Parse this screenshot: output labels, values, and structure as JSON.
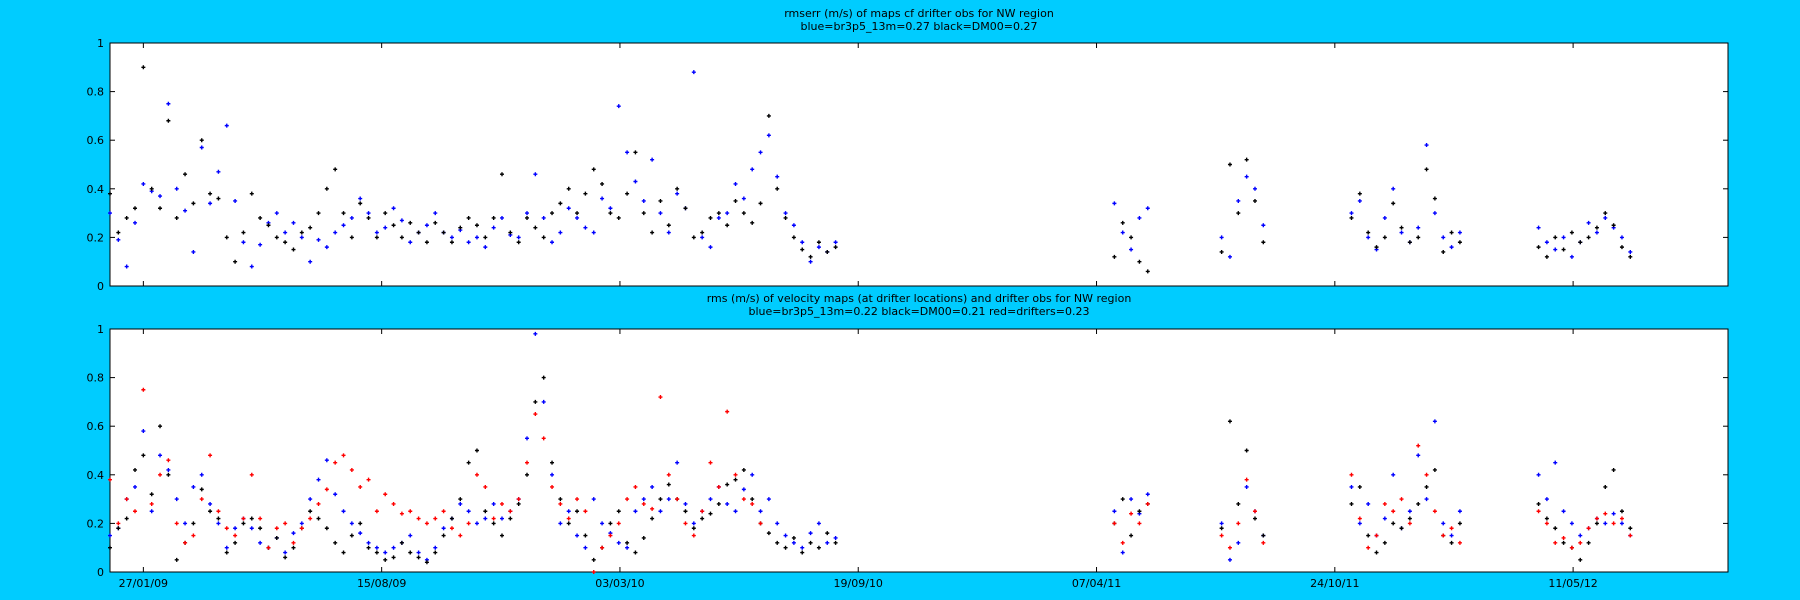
{
  "colors": {
    "background": "#00ccff",
    "plot_bg": "#ffffff",
    "blue": "#0000ff",
    "black": "#000000",
    "red": "#ff0000"
  },
  "chart_data": [
    {
      "type": "scatter",
      "title": "rmserr (m/s) of maps cf drifter obs for NW region",
      "subtitle": "blue=br3p5_13m=0.27 black=DM00=0.27",
      "ylim": [
        0,
        1
      ],
      "yticks": [
        0,
        0.2,
        0.4,
        0.6,
        0.8,
        1
      ],
      "ytick_labels": [
        "0",
        "0.2",
        "0.4",
        "0.6",
        "0.8",
        "1"
      ],
      "xlim": [
        "2008-12-30",
        "2012-09-18"
      ],
      "xticks": [
        "2009-01-27",
        "2009-08-15",
        "2010-03-03",
        "2010-09-19",
        "2011-04-07",
        "2011-10-24",
        "2012-05-11"
      ],
      "xtick_labels": [],
      "grid": false,
      "series": [
        {
          "color": "blue",
          "segments": [
            {
              "start": "2008-12-30",
              "step_days": 7,
              "values": [
                0.3,
                0.19,
                0.08,
                0.26,
                0.42,
                0.39,
                0.37,
                0.75,
                0.4,
                0.31,
                0.14,
                0.57,
                0.34,
                0.47,
                0.66,
                0.35,
                0.18,
                0.08,
                0.17,
                0.26,
                0.3,
                0.22,
                0.26,
                0.2,
                0.1,
                0.19,
                0.16,
                0.22,
                0.25,
                0.28,
                0.36,
                0.3,
                0.22,
                0.24,
                0.32,
                0.27,
                0.18,
                0.22,
                0.25,
                0.3,
                0.22,
                0.2,
                0.23,
                0.18,
                0.2,
                0.16,
                0.24,
                0.28,
                0.21,
                0.2,
                0.3,
                0.46,
                0.28,
                0.18,
                0.22,
                0.32,
                0.28,
                0.24,
                0.22,
                0.36,
                0.32,
                0.74,
                0.55,
                0.43,
                0.35,
                0.52,
                0.3,
                0.22,
                0.38,
                0.32,
                0.88,
                0.2,
                0.16,
                0.28,
                0.3,
                0.42,
                0.36,
                0.48,
                0.55,
                0.62,
                0.45,
                0.3,
                0.25,
                0.18,
                0.1,
                0.16,
                0.14,
                0.18
              ]
            },
            {
              "start": "2011-04-22",
              "step_days": 7,
              "values": [
                0.34,
                0.22,
                0.15,
                0.28,
                0.32
              ]
            },
            {
              "start": "2011-07-21",
              "step_days": 7,
              "values": [
                0.2,
                0.12,
                0.35,
                0.45,
                0.4,
                0.25
              ]
            },
            {
              "start": "2011-11-07",
              "step_days": 7,
              "values": [
                0.3,
                0.35,
                0.2,
                0.15,
                0.28,
                0.4,
                0.22,
                0.18,
                0.24,
                0.58,
                0.3,
                0.2,
                0.16,
                0.22
              ]
            },
            {
              "start": "2012-04-12",
              "step_days": 7,
              "values": [
                0.24,
                0.18,
                0.15,
                0.2,
                0.12,
                0.18,
                0.26,
                0.22,
                0.28,
                0.24,
                0.2,
                0.14
              ]
            }
          ]
        },
        {
          "color": "black",
          "segments": [
            {
              "start": "2008-12-30",
              "step_days": 7,
              "values": [
                0.38,
                0.22,
                0.28,
                0.32,
                0.9,
                0.4,
                0.32,
                0.68,
                0.28,
                0.46,
                0.34,
                0.6,
                0.38,
                0.36,
                0.2,
                0.1,
                0.22,
                0.38,
                0.28,
                0.25,
                0.2,
                0.18,
                0.15,
                0.22,
                0.24,
                0.3,
                0.4,
                0.48,
                0.3,
                0.2,
                0.34,
                0.28,
                0.2,
                0.3,
                0.25,
                0.2,
                0.26,
                0.22,
                0.18,
                0.26,
                0.22,
                0.18,
                0.24,
                0.28,
                0.25,
                0.2,
                0.28,
                0.46,
                0.22,
                0.18,
                0.28,
                0.24,
                0.2,
                0.3,
                0.34,
                0.4,
                0.3,
                0.38,
                0.48,
                0.42,
                0.3,
                0.28,
                0.38,
                0.55,
                0.3,
                0.22,
                0.35,
                0.25,
                0.4,
                0.32,
                0.2,
                0.22,
                0.28,
                0.3,
                0.25,
                0.35,
                0.3,
                0.26,
                0.34,
                0.7,
                0.4,
                0.28,
                0.2,
                0.15,
                0.12,
                0.18,
                0.14,
                0.16
              ]
            },
            {
              "start": "2011-04-22",
              "step_days": 7,
              "values": [
                0.12,
                0.26,
                0.2,
                0.1,
                0.06
              ]
            },
            {
              "start": "2011-07-21",
              "step_days": 7,
              "values": [
                0.14,
                0.5,
                0.3,
                0.52,
                0.35,
                0.18
              ]
            },
            {
              "start": "2011-11-07",
              "step_days": 7,
              "values": [
                0.28,
                0.38,
                0.22,
                0.16,
                0.2,
                0.34,
                0.24,
                0.18,
                0.2,
                0.48,
                0.36,
                0.14,
                0.22,
                0.18
              ]
            },
            {
              "start": "2012-04-12",
              "step_days": 7,
              "values": [
                0.16,
                0.12,
                0.2,
                0.15,
                0.22,
                0.18,
                0.2,
                0.24,
                0.3,
                0.25,
                0.16,
                0.12
              ]
            }
          ]
        }
      ]
    },
    {
      "type": "scatter",
      "title": "rms (m/s) of velocity maps (at drifter locations) and drifter obs for NW region",
      "subtitle": "blue=br3p5_13m=0.22  black=DM00=0.21 red=drifters=0.23",
      "ylim": [
        0,
        1
      ],
      "yticks": [
        0,
        0.2,
        0.4,
        0.6,
        0.8,
        1
      ],
      "ytick_labels": [
        "0",
        "0.2",
        "0.4",
        "0.6",
        "0.8",
        "1"
      ],
      "xlim": [
        "2008-12-30",
        "2012-09-18"
      ],
      "xticks": [
        "2009-01-27",
        "2009-08-15",
        "2010-03-03",
        "2010-09-19",
        "2011-04-07",
        "2011-10-24",
        "2012-05-11"
      ],
      "xtick_labels": [
        "27/01/09",
        "15/08/09",
        "03/03/10",
        "19/09/10",
        "07/04/11",
        "24/10/11",
        "11/05/12"
      ],
      "grid": false,
      "series": [
        {
          "color": "blue",
          "segments": [
            {
              "start": "2008-12-30",
              "step_days": 7,
              "values": [
                0.15,
                0.18,
                0.3,
                0.35,
                0.58,
                0.25,
                0.48,
                0.42,
                0.3,
                0.2,
                0.35,
                0.4,
                0.28,
                0.2,
                0.1,
                0.18,
                0.22,
                0.18,
                0.12,
                0.1,
                0.14,
                0.08,
                0.16,
                0.2,
                0.3,
                0.38,
                0.46,
                0.32,
                0.25,
                0.2,
                0.16,
                0.12,
                0.1,
                0.08,
                0.1,
                0.12,
                0.15,
                0.08,
                0.05,
                0.1,
                0.18,
                0.22,
                0.28,
                0.25,
                0.2,
                0.22,
                0.28,
                0.22,
                0.25,
                0.3,
                0.55,
                0.98,
                0.7,
                0.4,
                0.2,
                0.25,
                0.15,
                0.1,
                0.3,
                0.2,
                0.16,
                0.12,
                0.1,
                0.25,
                0.3,
                0.35,
                0.25,
                0.3,
                0.45,
                0.28,
                0.2,
                0.25,
                0.3,
                0.35,
                0.28,
                0.25,
                0.34,
                0.4,
                0.25,
                0.3,
                0.2,
                0.15,
                0.12,
                0.1,
                0.16,
                0.2,
                0.12,
                0.14
              ]
            },
            {
              "start": "2011-04-22",
              "step_days": 7,
              "values": [
                0.25,
                0.08,
                0.3,
                0.24,
                0.32
              ]
            },
            {
              "start": "2011-07-21",
              "step_days": 7,
              "values": [
                0.2,
                0.05,
                0.12,
                0.35,
                0.25,
                0.15
              ]
            },
            {
              "start": "2011-11-07",
              "step_days": 7,
              "values": [
                0.35,
                0.2,
                0.28,
                0.15,
                0.22,
                0.4,
                0.18,
                0.25,
                0.48,
                0.3,
                0.62,
                0.2,
                0.15,
                0.25
              ]
            },
            {
              "start": "2012-04-12",
              "step_days": 7,
              "values": [
                0.4,
                0.3,
                0.45,
                0.25,
                0.2,
                0.15,
                0.18,
                0.22,
                0.2,
                0.24,
                0.2,
                0.15
              ]
            }
          ]
        },
        {
          "color": "black",
          "segments": [
            {
              "start": "2008-12-30",
              "step_days": 7,
              "values": [
                0.1,
                0.18,
                0.22,
                0.42,
                0.48,
                0.32,
                0.6,
                0.4,
                0.05,
                0.12,
                0.2,
                0.34,
                0.25,
                0.22,
                0.08,
                0.12,
                0.2,
                0.22,
                0.18,
                0.1,
                0.14,
                0.06,
                0.1,
                0.18,
                0.25,
                0.22,
                0.18,
                0.12,
                0.08,
                0.15,
                0.2,
                0.1,
                0.08,
                0.05,
                0.06,
                0.12,
                0.08,
                0.06,
                0.04,
                0.08,
                0.15,
                0.22,
                0.3,
                0.45,
                0.5,
                0.25,
                0.2,
                0.15,
                0.22,
                0.28,
                0.4,
                0.7,
                0.8,
                0.45,
                0.3,
                0.2,
                0.25,
                0.15,
                0.05,
                0.1,
                0.2,
                0.25,
                0.12,
                0.08,
                0.14,
                0.22,
                0.3,
                0.36,
                0.3,
                0.25,
                0.18,
                0.22,
                0.24,
                0.28,
                0.36,
                0.38,
                0.42,
                0.3,
                0.2,
                0.16,
                0.12,
                0.1,
                0.14,
                0.08,
                0.12,
                0.1,
                0.16,
                0.12
              ]
            },
            {
              "start": "2011-04-22",
              "step_days": 7,
              "values": [
                0.2,
                0.3,
                0.15,
                0.25,
                0.28
              ]
            },
            {
              "start": "2011-07-21",
              "step_days": 7,
              "values": [
                0.18,
                0.62,
                0.28,
                0.5,
                0.22,
                0.15
              ]
            },
            {
              "start": "2011-11-07",
              "step_days": 7,
              "values": [
                0.28,
                0.35,
                0.15,
                0.08,
                0.12,
                0.2,
                0.18,
                0.22,
                0.28,
                0.35,
                0.42,
                0.15,
                0.12,
                0.2
              ]
            },
            {
              "start": "2012-04-12",
              "step_days": 7,
              "values": [
                0.28,
                0.22,
                0.18,
                0.12,
                0.1,
                0.05,
                0.12,
                0.2,
                0.35,
                0.42,
                0.25,
                0.18
              ]
            }
          ]
        },
        {
          "color": "red",
          "segments": [
            {
              "start": "2008-12-30",
              "step_days": 7,
              "values": [
                0.38,
                0.2,
                0.3,
                0.25,
                0.75,
                0.28,
                0.4,
                0.46,
                0.2,
                0.12,
                0.15,
                0.3,
                0.48,
                0.25,
                0.18,
                0.15,
                0.22,
                0.4,
                0.22,
                0.1,
                0.18,
                0.2,
                0.12,
                0.18,
                0.22,
                0.28,
                0.34,
                0.45,
                0.48,
                0.42,
                0.35,
                0.38,
                0.25,
                0.32,
                0.28,
                0.24,
                0.25,
                0.22,
                0.2,
                0.22,
                0.25,
                0.18,
                0.15,
                0.2,
                0.4,
                0.35,
                0.22,
                0.28,
                0.25,
                0.3,
                0.45,
                0.65,
                0.55,
                0.35,
                0.28,
                0.22,
                0.3,
                0.25,
                0.0,
                0.1,
                0.15,
                0.2,
                0.3,
                0.35,
                0.28,
                0.26,
                0.72,
                0.4,
                0.3,
                0.2,
                0.15,
                0.25,
                0.45,
                0.35,
                0.66,
                0.4,
                0.3,
                0.28,
                0.2
              ]
            },
            {
              "start": "2011-04-22",
              "step_days": 7,
              "values": [
                0.2,
                0.12,
                0.24,
                0.2,
                0.28
              ]
            },
            {
              "start": "2011-07-21",
              "step_days": 7,
              "values": [
                0.15,
                0.1,
                0.2,
                0.38,
                0.25,
                0.12
              ]
            },
            {
              "start": "2011-11-07",
              "step_days": 7,
              "values": [
                0.4,
                0.22,
                0.1,
                0.15,
                0.28,
                0.25,
                0.3,
                0.2,
                0.52,
                0.4,
                0.25,
                0.15,
                0.18,
                0.12
              ]
            },
            {
              "start": "2012-04-12",
              "step_days": 7,
              "values": [
                0.25,
                0.2,
                0.12,
                0.14,
                0.1,
                0.12,
                0.18,
                0.22,
                0.24,
                0.2,
                0.22,
                0.15
              ]
            }
          ]
        }
      ]
    }
  ]
}
